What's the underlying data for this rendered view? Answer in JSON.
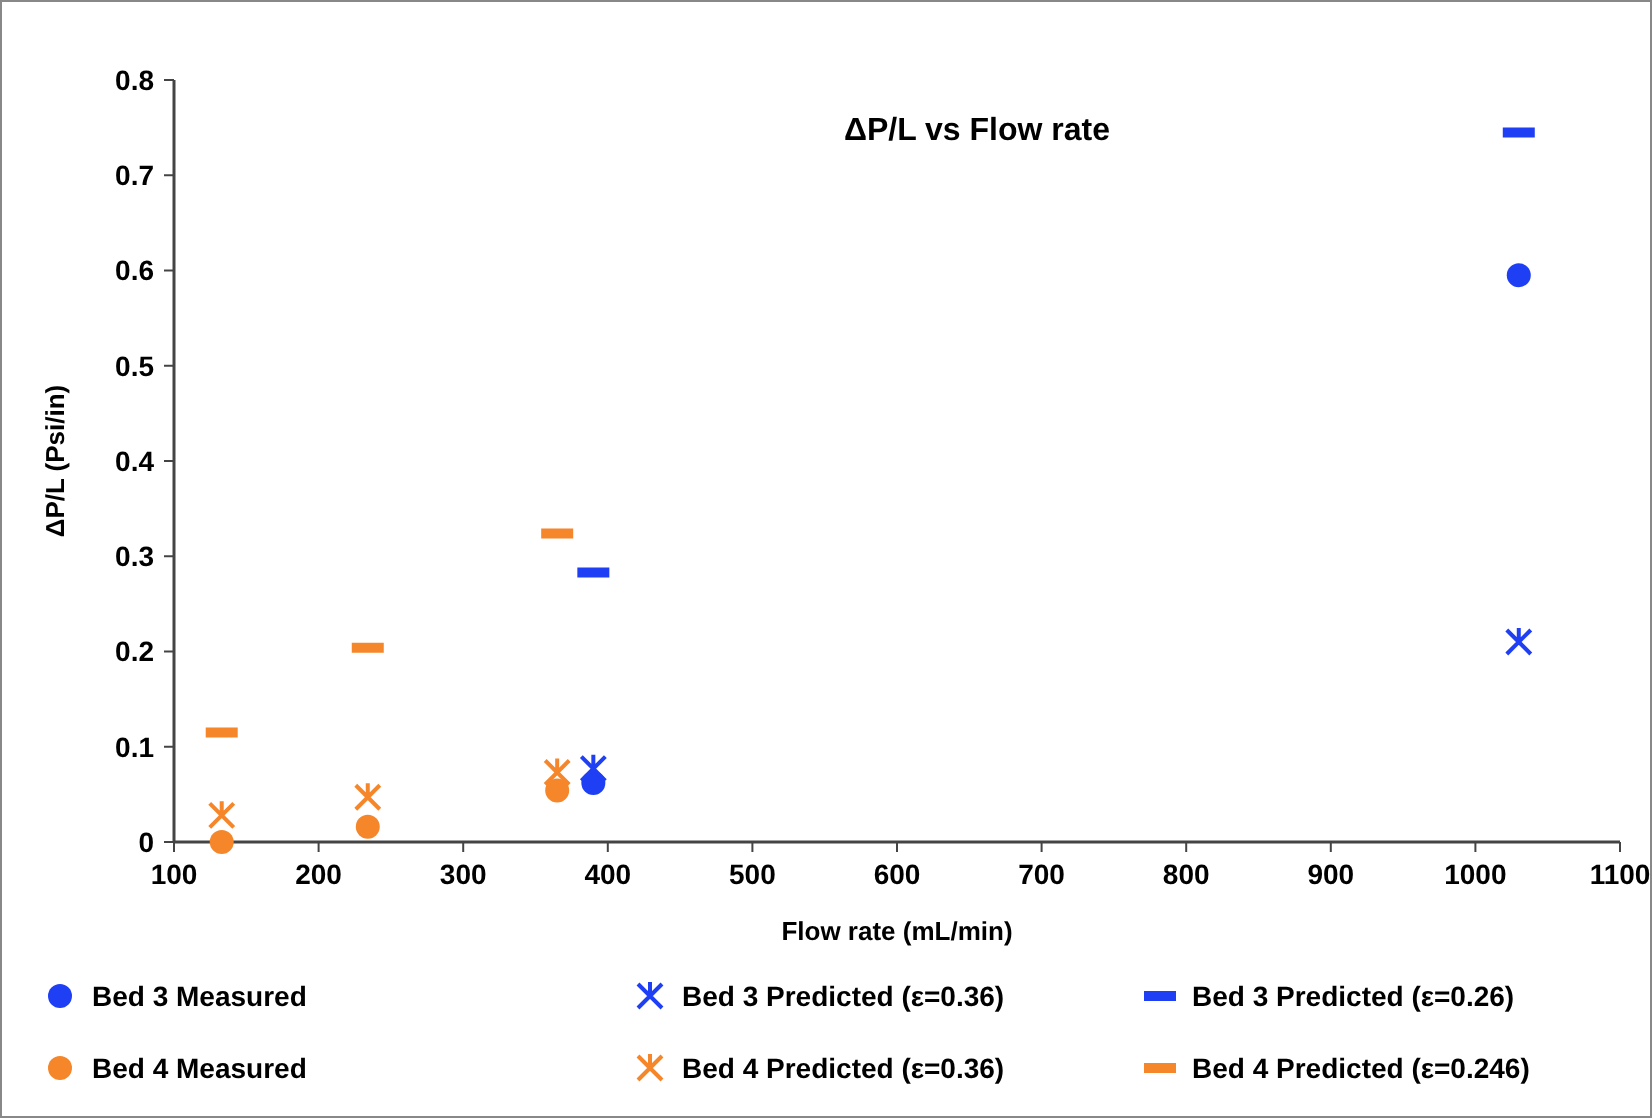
{
  "chart_data": {
    "type": "scatter",
    "title": "ΔP/L vs Flow rate",
    "xlabel": "Flow rate (mL/min)",
    "ylabel": "ΔP/L (Psi/in)",
    "xlim": [
      100,
      1100
    ],
    "xticks": [
      100,
      200,
      300,
      400,
      500,
      600,
      700,
      800,
      900,
      1000,
      1100
    ],
    "ylim": [
      0,
      0.8
    ],
    "yticks": [
      0,
      0.1,
      0.2,
      0.3,
      0.4,
      0.5,
      0.6,
      0.7,
      0.8
    ],
    "grid": false,
    "legend": "bottom",
    "series": [
      {
        "name": "Bed 3 Measured",
        "color": "#1f3ff5",
        "marker": "circle",
        "x": [
          390,
          1030
        ],
        "values": [
          0.062,
          0.595
        ]
      },
      {
        "name": "Bed 3 Predicted (ε=0.36)",
        "color": "#1f3ff5",
        "marker": "cross",
        "x": [
          390,
          1030
        ],
        "values": [
          0.077,
          0.21
        ]
      },
      {
        "name": "Bed 3 Predicted (ε=0.26)",
        "color": "#1f3ff5",
        "x": [
          390,
          1030
        ],
        "values": [
          0.283,
          0.745
        ]
      },
      {
        "name": "Bed 4 Measured",
        "color": "#f5862a",
        "marker": "circle",
        "x": [
          133,
          234,
          365
        ],
        "values": [
          0,
          0.016,
          0.054
        ]
      },
      {
        "name": "Bed 4 Predicted (ε=0.36)",
        "color": "#f5862a",
        "marker": "cross",
        "x": [
          133,
          234,
          365
        ],
        "values": [
          0.028,
          0.047,
          0.073
        ]
      },
      {
        "name": "Bed 4 Predicted (ε=0.246)",
        "color": "#f5862a",
        "x": [
          133,
          234,
          365
        ],
        "values": [
          0.115,
          0.204,
          0.324
        ]
      }
    ]
  }
}
